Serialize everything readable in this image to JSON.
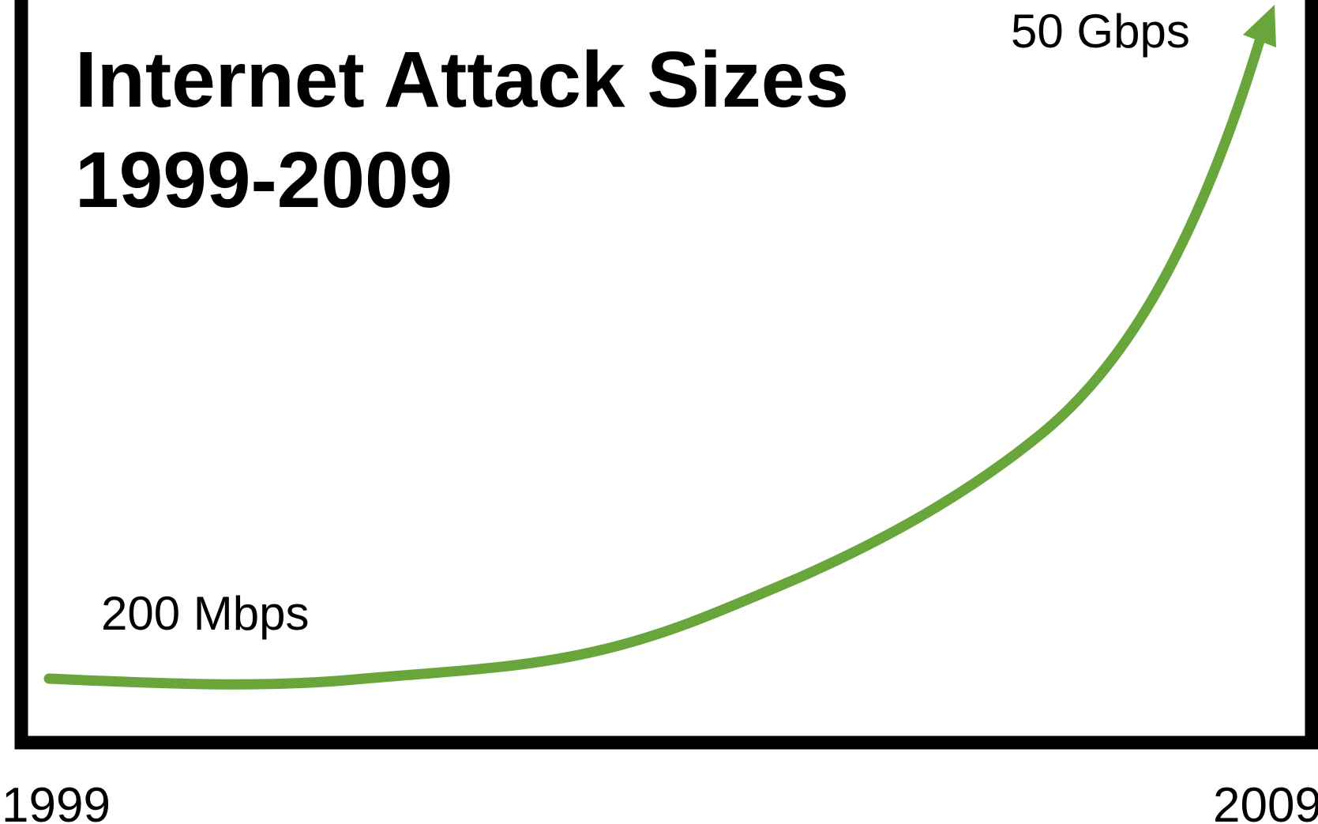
{
  "chart_data": {
    "type": "line",
    "title": "Internet Attack Sizes 1999-2009",
    "title_lines": [
      "Internet Attack Sizes",
      "1999-2009"
    ],
    "xlabel": "",
    "ylabel": "",
    "x_tick_labels": [
      "1999",
      "2009"
    ],
    "grid": false,
    "series": [
      {
        "color": "#68A53A",
        "points": [
          {
            "x": 1999,
            "y": 0.2
          },
          {
            "x": 2009,
            "y": 50
          }
        ]
      }
    ],
    "annotations": [
      {
        "text": "200 Mbps",
        "at": "start",
        "value_gbps": 0.2
      },
      {
        "text": "50 Gbps",
        "at": "end",
        "value_gbps": 50
      }
    ],
    "end_marker": "arrow"
  }
}
